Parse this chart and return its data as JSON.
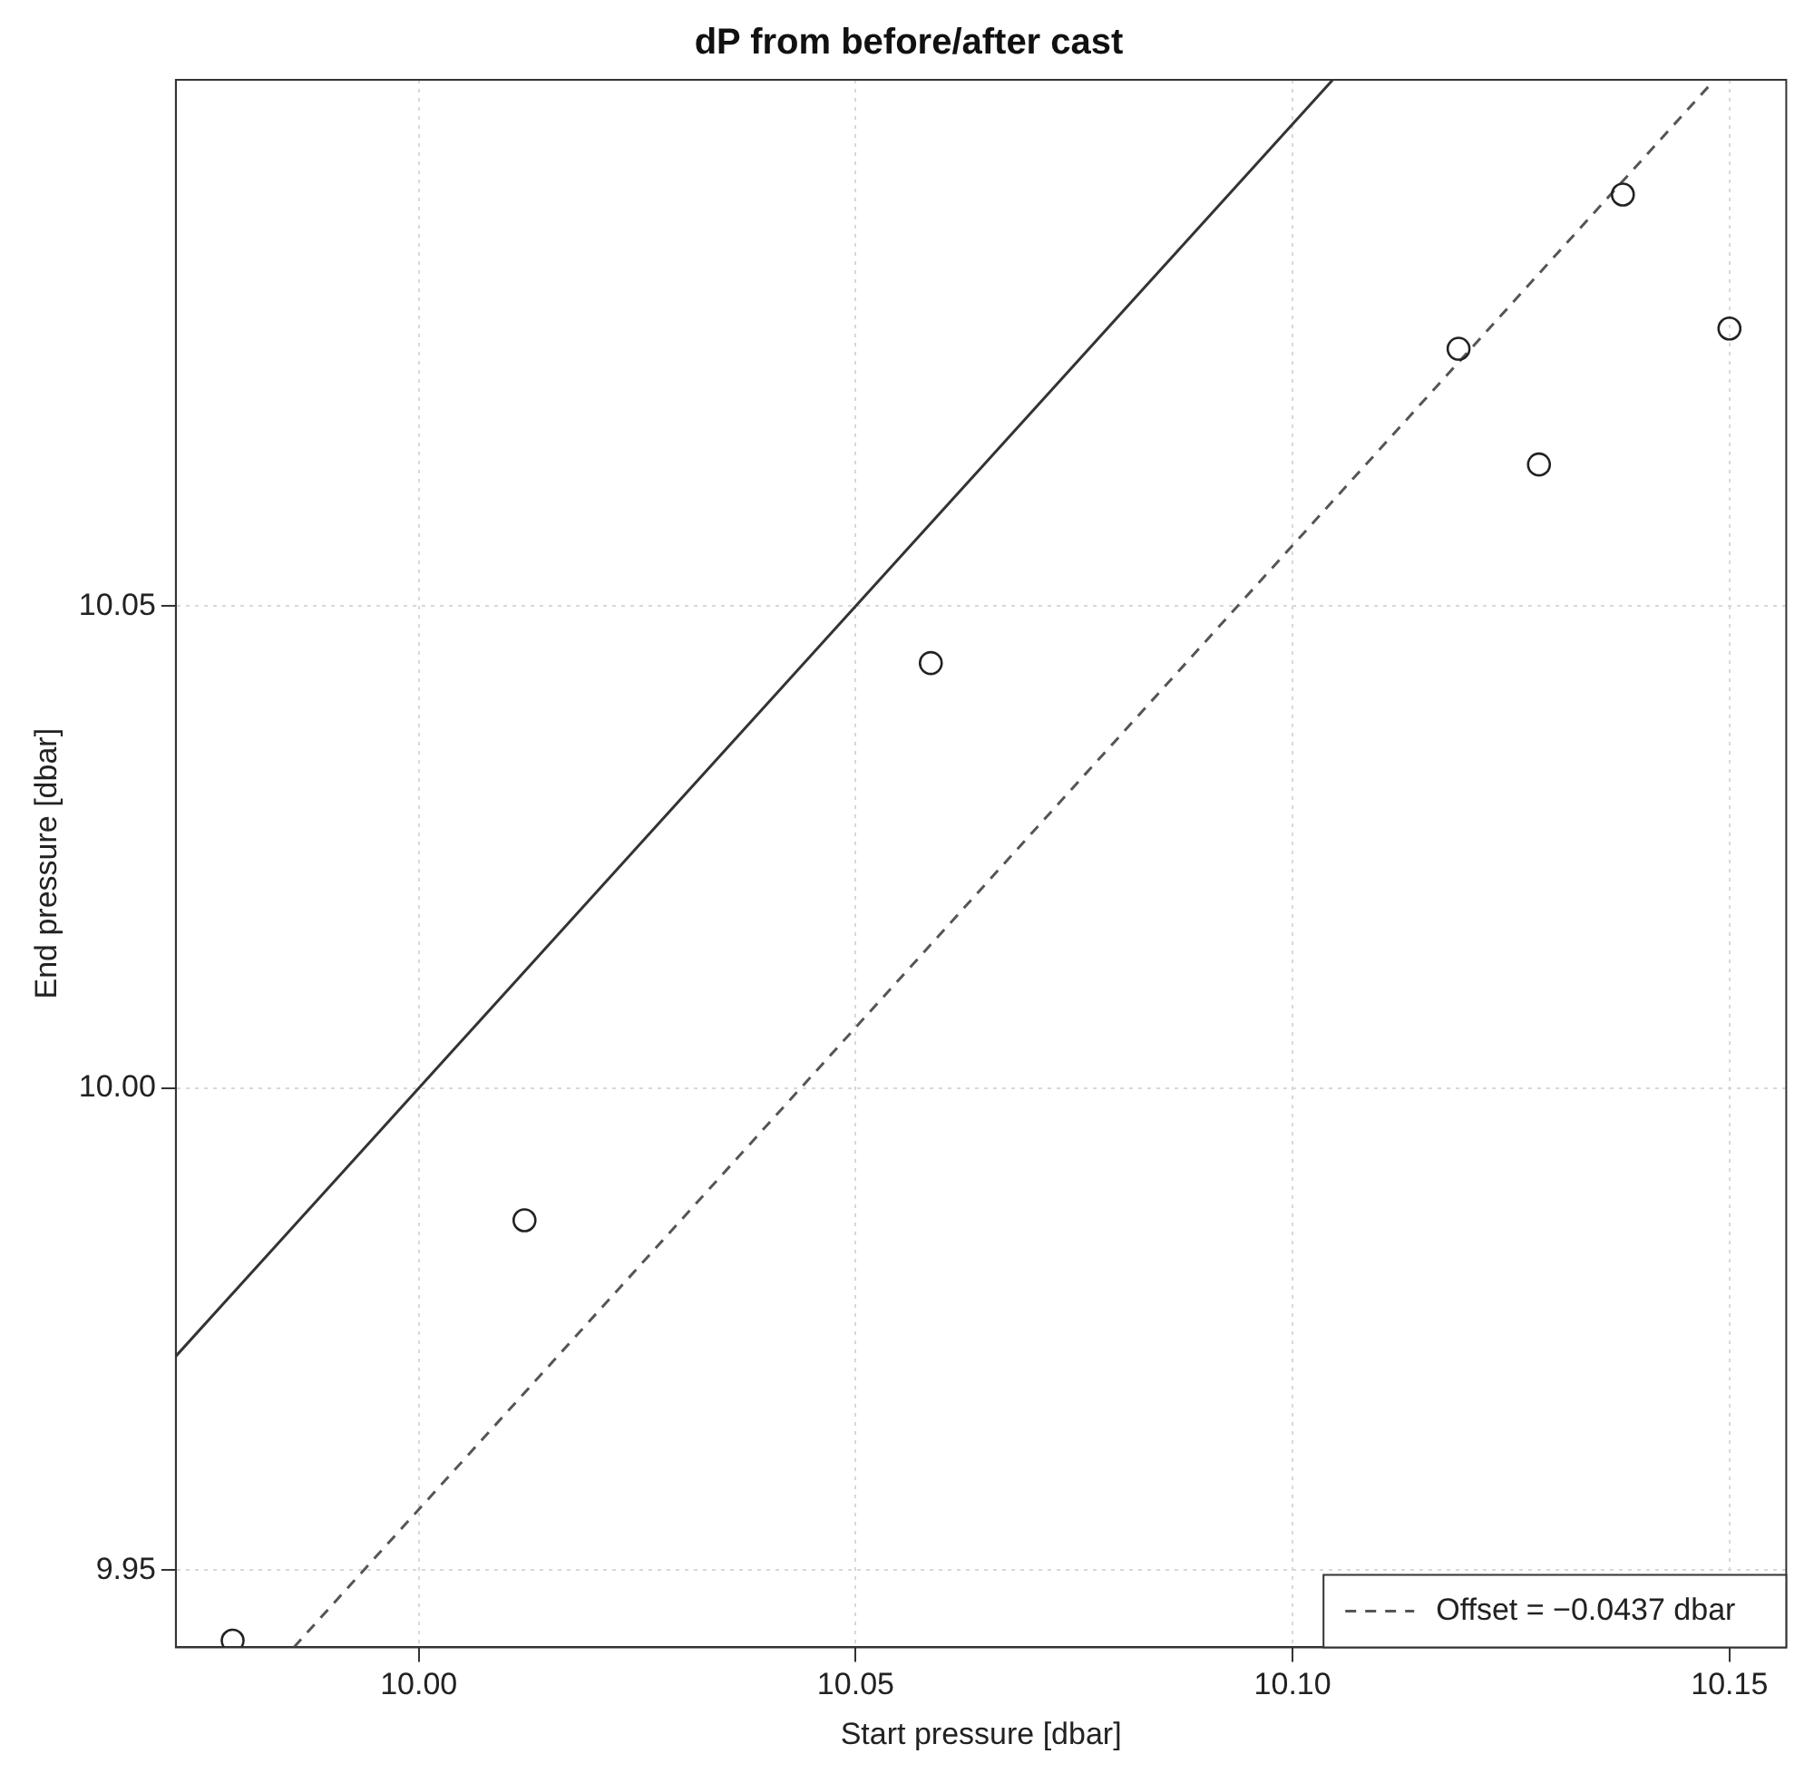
{
  "chart_data": {
    "type": "scatter",
    "title": "dP from before/after cast",
    "xlabel": "Start pressure [dbar]",
    "ylabel": "End pressure [dbar]",
    "xlim": [
      9.9722,
      10.1565
    ],
    "xticks": [
      {
        "value": 10,
        "label": "10.00"
      },
      10.05,
      {
        "value": 10.1,
        "label": "10.10"
      },
      10.15
    ],
    "ylim": [
      9.942,
      10.1046
    ],
    "yticks": [
      9.95,
      {
        "value": 10,
        "label": "10.00"
      },
      10.05
    ],
    "grid": true,
    "legend": "bottom right",
    "series": [
      {
        "type": "scatter",
        "color": "#222222",
        "marker": "circle",
        "x": [
          9.9787,
          10.0121,
          10.0586,
          10.119,
          10.1282,
          10.1378,
          10.15
        ],
        "values": [
          9.9427,
          9.9863,
          10.0441,
          10.0767,
          10.0647,
          10.0927,
          10.0788
        ]
      },
      {
        "type": "line",
        "color": "#333333",
        "line_style": "solid",
        "x": [
          9.9722,
          10.1046
        ],
        "values": [
          9.9722,
          10.1046
        ]
      },
      {
        "type": "line",
        "name": "Offset = −0.0437 dbar",
        "color": "#555555",
        "line_style": "dashed",
        "x": [
          9.9857,
          10.1483
        ],
        "values": [
          9.942,
          10.1046
        ]
      }
    ]
  }
}
